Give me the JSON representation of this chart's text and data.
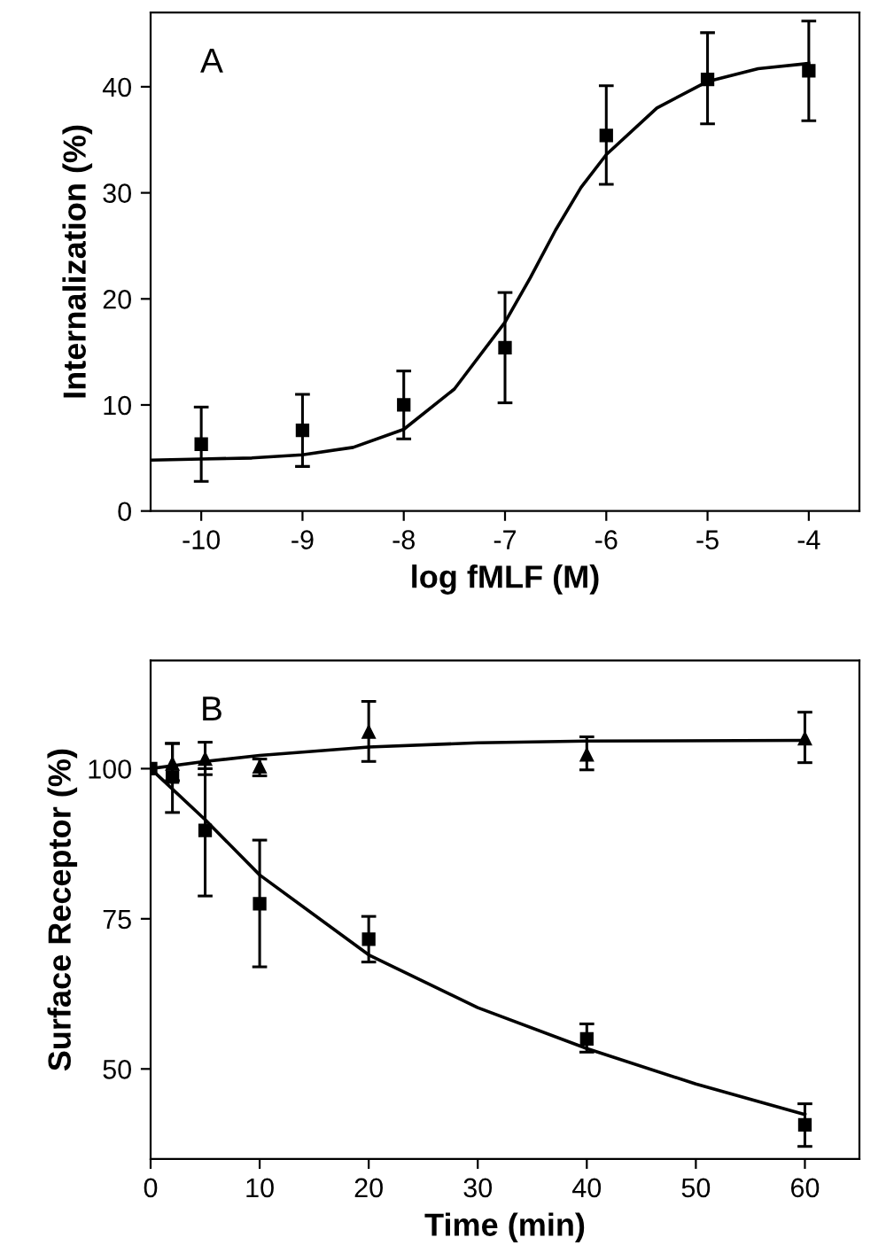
{
  "chart_data": [
    {
      "type": "scatter",
      "xlabel": "log fMLF (M)",
      "ylabel": "Internalization (%)",
      "annotations": [
        "A"
      ],
      "xlim": [
        -10.5,
        -3.5
      ],
      "ylim": [
        0,
        47
      ],
      "xticks": [
        -10,
        -9,
        -8,
        -7,
        -6,
        -5,
        -4
      ],
      "yticks": [
        0,
        10,
        20,
        30,
        40
      ],
      "grid": false,
      "legend": false,
      "series": [
        {
          "marker": "square",
          "color": "#000000",
          "x": [
            -10,
            -9,
            -8,
            -7,
            -6,
            -5,
            -4
          ],
          "values": [
            6.3,
            7.6,
            10.0,
            15.4,
            35.4,
            40.7,
            41.5
          ],
          "errors": [
            [
              2.8,
              9.8
            ],
            [
              4.2,
              11.0
            ],
            [
              6.8,
              13.2
            ],
            [
              10.2,
              20.6
            ],
            [
              30.8,
              40.1
            ],
            [
              36.5,
              45.1
            ],
            [
              36.8,
              46.2
            ]
          ]
        },
        {
          "type": "line",
          "color": "#000000",
          "x": [
            -10.5,
            -10,
            -9.5,
            -9,
            -8.5,
            -8,
            -7.5,
            -7,
            -6.75,
            -6.5,
            -6.25,
            -6,
            -5.5,
            -5,
            -4.5,
            -4
          ],
          "values": [
            4.8,
            4.9,
            5.0,
            5.3,
            6.0,
            7.7,
            11.5,
            17.8,
            22,
            26.5,
            30.5,
            33.6,
            38,
            40.5,
            41.7,
            42.2
          ]
        }
      ]
    },
    {
      "type": "scatter",
      "xlabel": "Time (min)",
      "ylabel": "Surface Receptor (%)",
      "annotations": [
        "B"
      ],
      "xlim": [
        0,
        65
      ],
      "ylim": [
        35,
        118
      ],
      "xticks": [
        0,
        10,
        20,
        30,
        40,
        50,
        60
      ],
      "yticks": [
        50,
        75,
        100
      ],
      "grid": false,
      "legend": false,
      "series": [
        {
          "marker": "square",
          "color": "#000000",
          "x": [
            0,
            2,
            5,
            10,
            20,
            40,
            60
          ],
          "values": [
            100,
            98.6,
            89.7,
            77.5,
            71.6,
            55.0,
            40.7
          ],
          "errors": [
            null,
            [
              92.7,
              104.2
            ],
            [
              78.8,
              100
            ],
            [
              67.0,
              88.1
            ],
            [
              67.8,
              75.4
            ],
            [
              52.8,
              57.5
            ],
            [
              37.1,
              44.2
            ]
          ]
        },
        {
          "marker": "triangle",
          "color": "#000000",
          "x": [
            2,
            5,
            10,
            20,
            40,
            60
          ],
          "values": [
            100.8,
            101.6,
            100.3,
            106.1,
            102.3,
            105
          ],
          "errors": [
            [
              98,
              104.2
            ],
            [
              99.0,
              104.4
            ],
            [
              98.8,
              101.6
            ],
            [
              101.2,
              111.2
            ],
            [
              99.8,
              105.3
            ],
            [
              101,
              109.4
            ]
          ]
        },
        {
          "type": "line",
          "color": "#000000",
          "x": [
            0,
            5,
            10,
            20,
            30,
            40,
            50,
            60
          ],
          "values": [
            100,
            91.5,
            82.3,
            69,
            60.2,
            53.4,
            47.5,
            42.4
          ]
        },
        {
          "type": "line",
          "color": "#000000",
          "x": [
            0,
            5,
            10,
            20,
            30,
            40,
            60
          ],
          "values": [
            100,
            101.2,
            102.2,
            103.6,
            104.3,
            104.6,
            104.7
          ]
        }
      ]
    }
  ]
}
